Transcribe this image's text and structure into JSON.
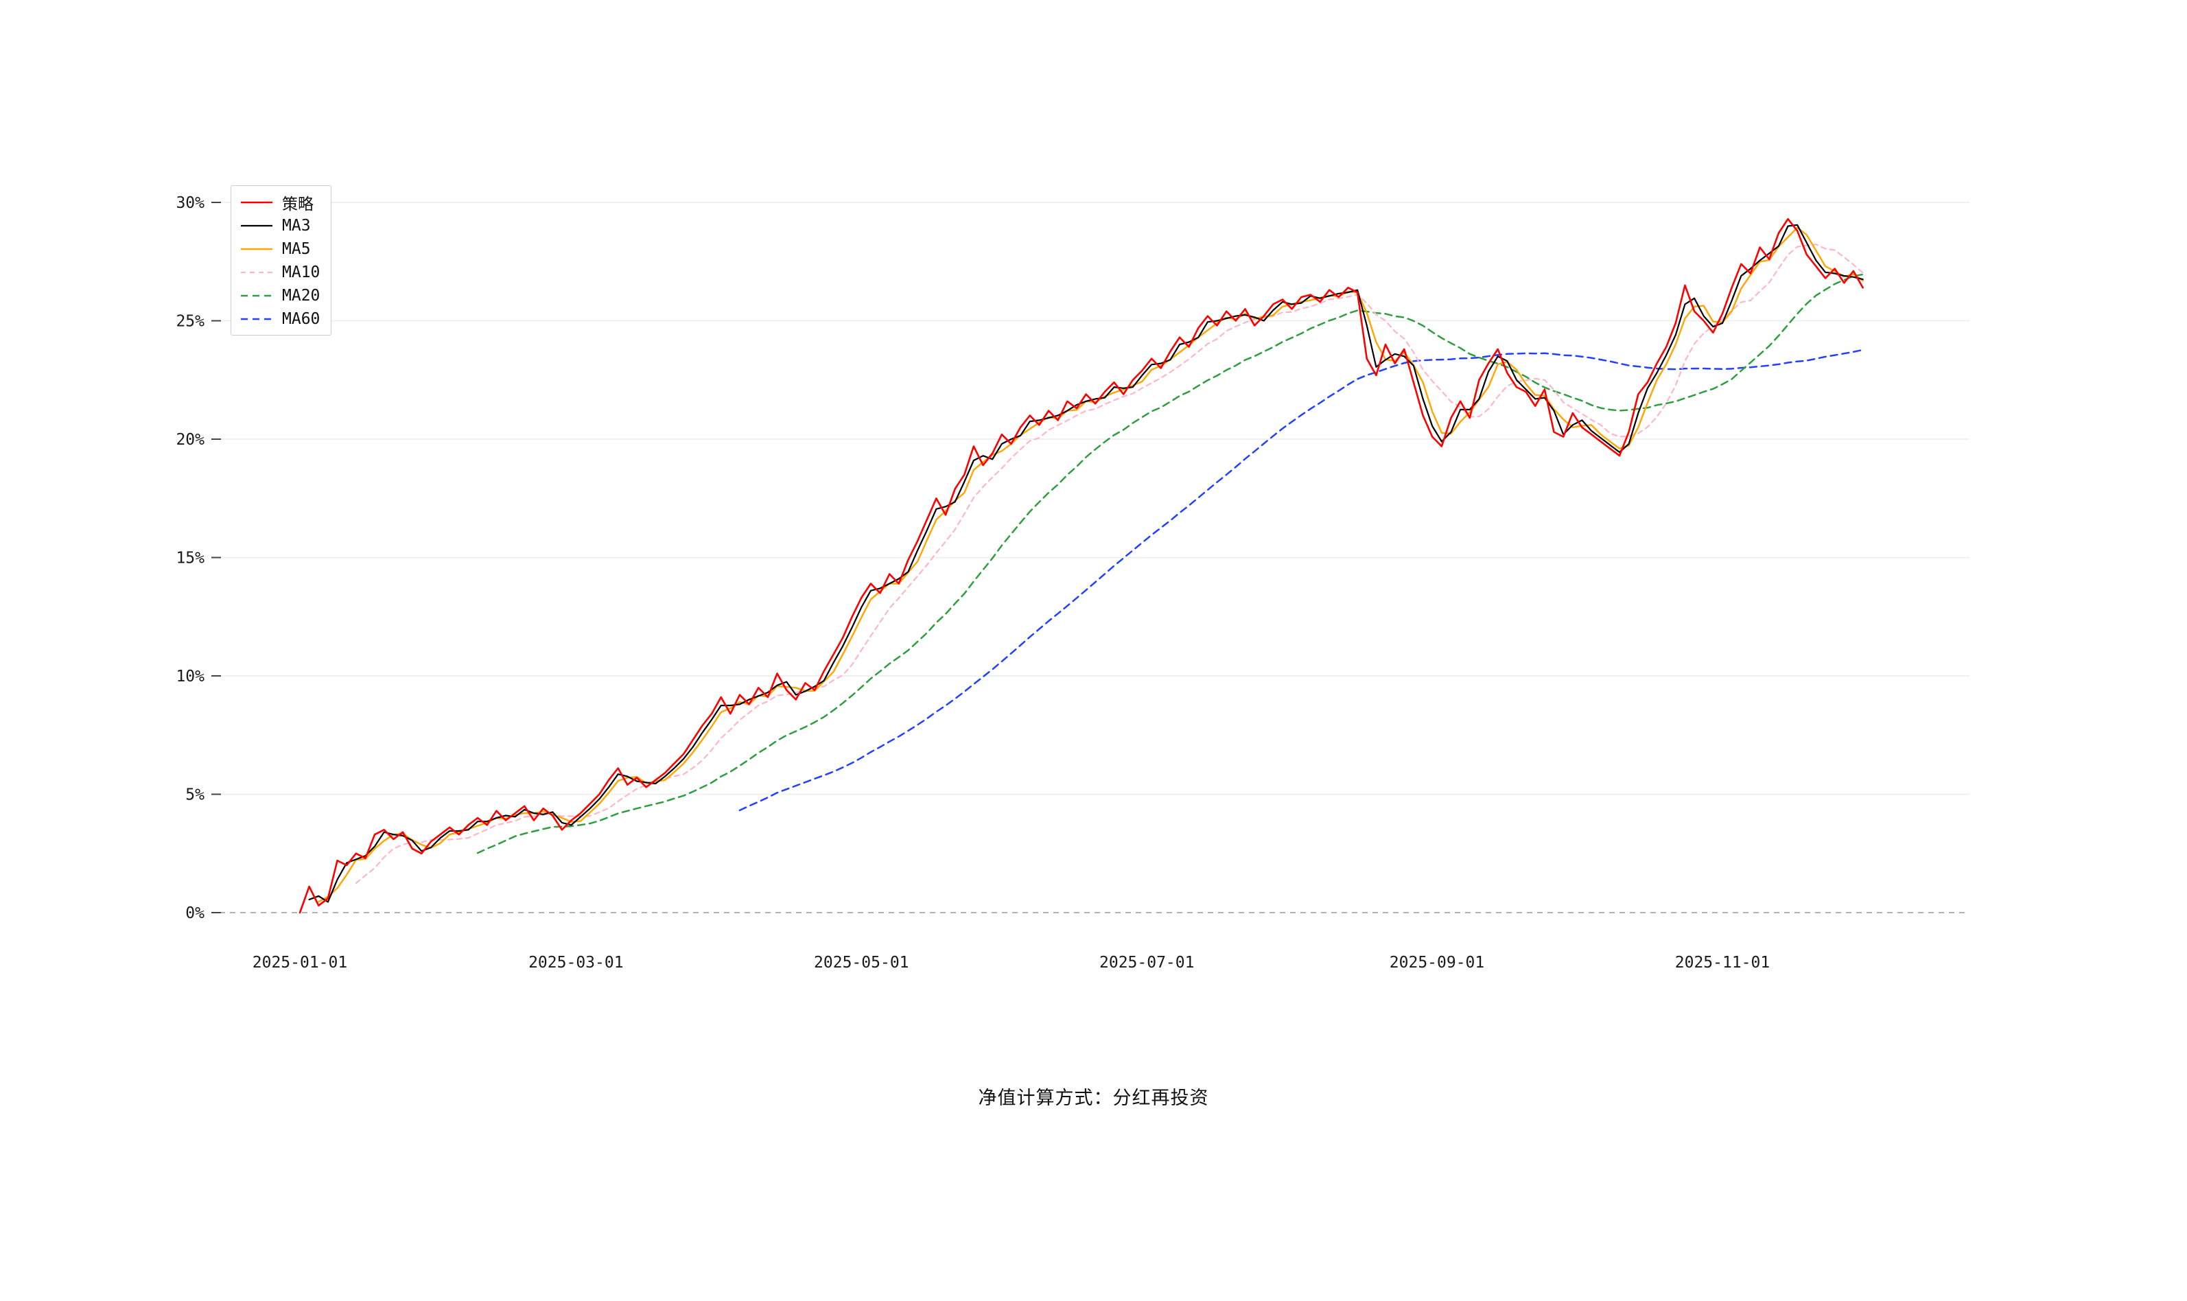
{
  "footer": {
    "caption": "净值计算方式：分红再投资"
  },
  "chart_data": {
    "type": "line",
    "title": "",
    "xlabel": "",
    "ylabel": "",
    "ylim": [
      0,
      30
    ],
    "grid": "faint horizontal lines at 5% steps, dashed gray line at 0%",
    "legend_position": "top-left",
    "x_unit": "days since 2025-01-01",
    "x_start_day": 0,
    "x_step_days": 2,
    "x_ticks": [
      {
        "label": "2025-01-01",
        "day": 0
      },
      {
        "label": "2025-03-01",
        "day": 59
      },
      {
        "label": "2025-05-01",
        "day": 120
      },
      {
        "label": "2025-07-01",
        "day": 181
      },
      {
        "label": "2025-09-01",
        "day": 243
      },
      {
        "label": "2025-11-01",
        "day": 304
      }
    ],
    "y_ticks": [
      {
        "label": "0%",
        "value": 0
      },
      {
        "label": "5%",
        "value": 5
      },
      {
        "label": "10%",
        "value": 10
      },
      {
        "label": "15%",
        "value": 15
      },
      {
        "label": "20%",
        "value": 20
      },
      {
        "label": "25%",
        "value": 25
      },
      {
        "label": "30%",
        "value": 30
      }
    ],
    "series": [
      {
        "id": "strategy",
        "name": "策略",
        "color": "#ff0000",
        "dash": null,
        "width": 2.6,
        "values": [
          0.0,
          1.1,
          0.3,
          0.6,
          2.2,
          2.0,
          2.5,
          2.3,
          3.3,
          3.5,
          3.1,
          3.4,
          2.7,
          2.5,
          3.0,
          3.3,
          3.6,
          3.3,
          3.7,
          4.0,
          3.7,
          4.3,
          3.9,
          4.2,
          4.5,
          3.9,
          4.4,
          4.1,
          3.5,
          3.9,
          4.2,
          4.6,
          5.0,
          5.6,
          6.1,
          5.4,
          5.7,
          5.3,
          5.6,
          5.9,
          6.3,
          6.7,
          7.3,
          7.9,
          8.4,
          9.1,
          8.4,
          9.2,
          8.8,
          9.5,
          9.1,
          10.1,
          9.4,
          9.0,
          9.7,
          9.4,
          10.2,
          10.9,
          11.6,
          12.5,
          13.3,
          13.9,
          13.5,
          14.3,
          13.9,
          14.9,
          15.7,
          16.6,
          17.5,
          16.8,
          17.9,
          18.5,
          19.7,
          18.9,
          19.4,
          20.2,
          19.8,
          20.5,
          21.0,
          20.6,
          21.2,
          20.8,
          21.6,
          21.3,
          21.9,
          21.5,
          22.0,
          22.4,
          21.9,
          22.5,
          22.9,
          23.4,
          23.0,
          23.7,
          24.3,
          23.9,
          24.7,
          25.2,
          24.8,
          25.4,
          25.0,
          25.5,
          24.8,
          25.2,
          25.7,
          25.9,
          25.5,
          26.0,
          26.1,
          25.8,
          26.3,
          26.0,
          26.4,
          26.2,
          23.4,
          22.7,
          24.0,
          23.2,
          23.8,
          22.4,
          21.0,
          20.1,
          19.7,
          20.9,
          21.6,
          20.9,
          22.5,
          23.2,
          23.8,
          22.8,
          22.2,
          22.0,
          21.4,
          22.1,
          20.3,
          20.1,
          21.1,
          20.5,
          20.2,
          19.9,
          19.6,
          19.3,
          20.3,
          21.9,
          22.4,
          23.2,
          23.9,
          24.9,
          26.5,
          25.4,
          25.0,
          24.5,
          25.3,
          26.4,
          27.4,
          27.0,
          28.1,
          27.6,
          28.7,
          29.3,
          28.8,
          27.8,
          27.3,
          26.8,
          27.2,
          26.6,
          27.1,
          26.4
        ]
      },
      {
        "id": "ma3",
        "name": "MA3",
        "color": "#000000",
        "dash": null,
        "width": 2.2,
        "window": 2
      },
      {
        "id": "ma5",
        "name": "MA5",
        "color": "#ffa500",
        "dash": null,
        "width": 2.4,
        "window": 3
      },
      {
        "id": "ma10",
        "name": "MA10",
        "color": "#ffb6c8",
        "dash": "7 6",
        "width": 2.2,
        "window": 7
      },
      {
        "id": "ma20",
        "name": "MA20",
        "color": "#2e9e3e",
        "dash": "10 7",
        "width": 2.5,
        "window": 20
      },
      {
        "id": "ma60",
        "name": "MA60",
        "color": "#2140ff",
        "dash": "10 7",
        "width": 2.5,
        "window": 48
      }
    ]
  }
}
